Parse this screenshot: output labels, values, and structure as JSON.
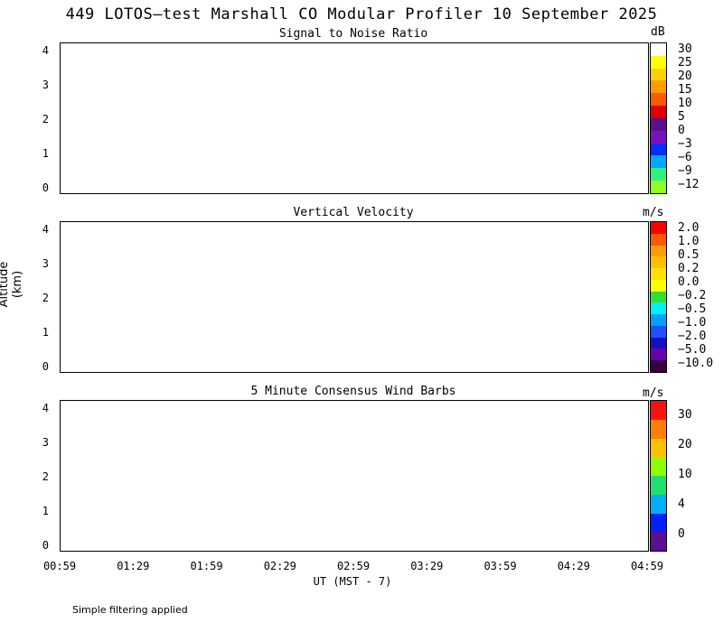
{
  "chart_data": {
    "type": "heatmap",
    "title": "449 LOTOS—test Marshall CO Modular Profiler 10 September 2025",
    "xlabel": "UT  (MST - 7)",
    "ylabel": "Altitude (km)",
    "x_ticks": [
      "00:59",
      "01:29",
      "01:59",
      "02:29",
      "02:59",
      "03:29",
      "03:59",
      "04:29",
      "04:59"
    ],
    "y_ticks": [
      "0",
      "1",
      "2",
      "3",
      "4"
    ],
    "ylim": [
      0,
      4.2
    ],
    "panels": [
      {
        "title": "Signal to Noise Ratio",
        "units": "dB",
        "colorbar_labels": [
          "30",
          "25",
          "20",
          "15",
          "10",
          "5",
          "0",
          "−3",
          "−6",
          "−9",
          "−12"
        ],
        "colorbar_colors": [
          "#ffffff",
          "#ffff00",
          "#ffd000",
          "#ff9c00",
          "#ff5a00",
          "#e00000",
          "#5a1090",
          "#7a10c0",
          "#0030ff",
          "#00a8ff",
          "#30f080",
          "#90ff20"
        ]
      },
      {
        "title": "Vertical Velocity",
        "units": "m/s",
        "colorbar_labels": [
          "2.0",
          "1.0",
          "0.5",
          "0.2",
          "0.0",
          "−0.2",
          "−0.5",
          "−1.0",
          "−2.0",
          "−5.0",
          "−10.0"
        ],
        "colorbar_colors": [
          "#ff0000",
          "#ff5a00",
          "#ff9c00",
          "#ffbe00",
          "#ffe000",
          "#ffff00",
          "#30e030",
          "#00f0ff",
          "#00a0ff",
          "#2050ff",
          "#1810c0",
          "#6a00b0",
          "#3a0040"
        ]
      },
      {
        "title": "5 Minute Consensus Wind Barbs",
        "units": "m/s",
        "colorbar_labels": [
          "30",
          "20",
          "10",
          "4",
          "0"
        ],
        "colorbar_colors": [
          "#ff1010",
          "#ff8000",
          "#ffc000",
          "#90ff00",
          "#20e070",
          "#00b0ff",
          "#0020ff",
          "#5a1090"
        ]
      }
    ],
    "footnote": "Simple filtering applied"
  }
}
